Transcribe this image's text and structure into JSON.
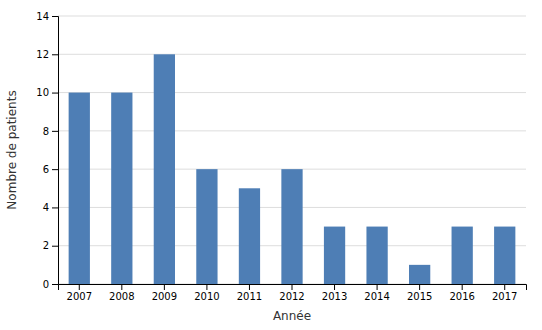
{
  "chart_data": {
    "type": "bar",
    "categories": [
      "2007",
      "2008",
      "2009",
      "2010",
      "2011",
      "2012",
      "2013",
      "2014",
      "2015",
      "2016",
      "2017"
    ],
    "values": [
      10,
      10,
      12,
      6,
      5,
      6,
      3,
      3,
      1,
      3,
      3
    ],
    "color": "#4e7eb5",
    "xlabel": "Année",
    "ylabel": "Nombre de patients",
    "ylim": [
      0,
      14
    ],
    "yticks": [
      0,
      2,
      4,
      6,
      8,
      10,
      12,
      14
    ],
    "grid": true
  }
}
